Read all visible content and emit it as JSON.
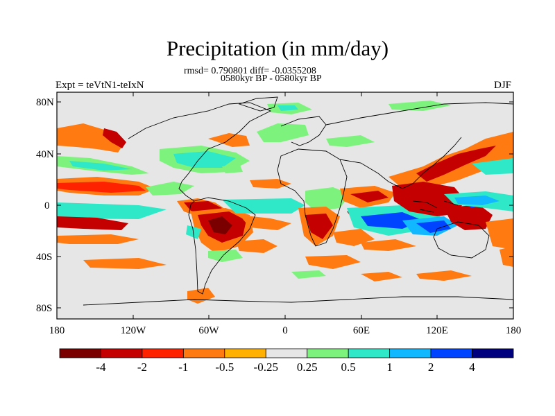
{
  "title": "Precipitation (in mm/day)",
  "stats": "rmsd= 0.790801 diff= -0.0355208",
  "period": "0580kyr BP - 0580kyr BP",
  "experiment": "Expt = teVtN1-teIxN",
  "season": "DJF",
  "y_ticks": [
    "80N",
    "40N",
    "0",
    "40S",
    "80S"
  ],
  "x_ticks": [
    "180",
    "120W",
    "60W",
    "0",
    "60E",
    "120E",
    "180"
  ],
  "colorbar": {
    "labels": [
      "-4",
      "-2",
      "-1",
      "-0.5",
      "-0.25",
      "0.25",
      "0.5",
      "1",
      "2",
      "4"
    ],
    "colors": [
      "#7a0000",
      "#c40000",
      "#ff2200",
      "#ff7a10",
      "#ffb000",
      "#e6e6e6",
      "#7df27d",
      "#2ee8c8",
      "#12b8ff",
      "#0044ff",
      "#00007e"
    ]
  },
  "map_colors": {
    "background": "#e6e6e6",
    "dark_red": "#7a0000",
    "red": "#c40000",
    "red_orange": "#ff2200",
    "orange": "#ff7a10",
    "yellow_orange": "#ffb000",
    "green": "#7df27d",
    "cyan": "#2ee8c8",
    "light_blue": "#12b8ff",
    "blue": "#0044ff"
  }
}
